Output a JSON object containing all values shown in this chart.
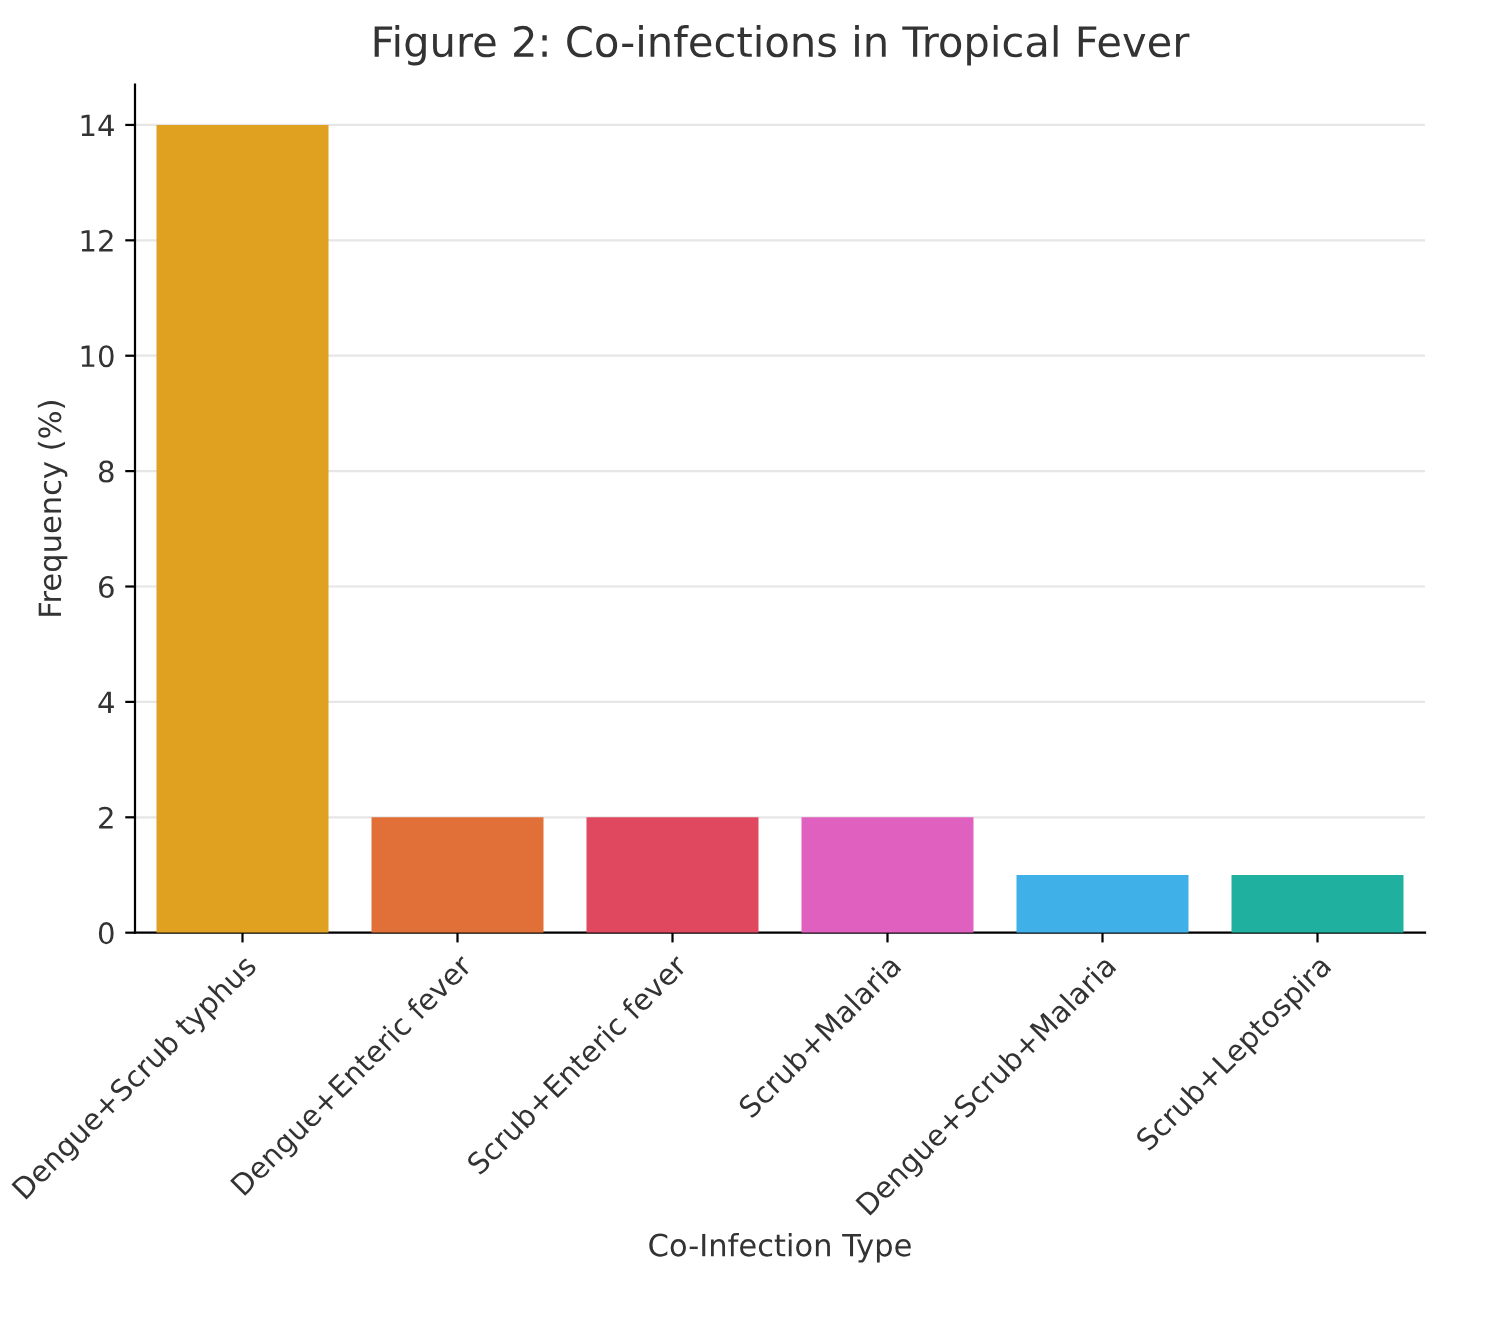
{
  "chart_data": {
    "type": "bar",
    "title": "Figure 2: Co-infections in Tropical Fever",
    "xlabel": "Co-Infection Type",
    "ylabel": "Frequency (%)",
    "categories": [
      "Dengue+Scrub typhus",
      "Dengue+Enteric fever",
      "Scrub+Enteric fever",
      "Scrub+Malaria",
      "Dengue+Scrub+Malaria",
      "Scrub+Leptospira"
    ],
    "values": [
      14,
      2,
      2,
      2,
      1,
      1
    ],
    "colors": [
      "#e0a020",
      "#e07038",
      "#e04860",
      "#e060c0",
      "#40b0e8",
      "#20b0a0"
    ],
    "ylim": [
      0,
      14.7
    ],
    "yticks": [
      0,
      2,
      4,
      6,
      8,
      10,
      12,
      14
    ],
    "grid": "y"
  }
}
